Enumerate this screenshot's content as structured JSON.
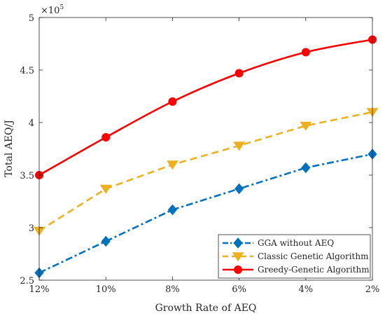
{
  "chart_data": {
    "type": "line",
    "title": "",
    "xlabel": "Growth Rate of AEQ",
    "ylabel": "Total AEQ/J",
    "y_multiplier_label": "×10",
    "y_multiplier_exponent": "5",
    "categories": [
      "12%",
      "10%",
      "8%",
      "6%",
      "4%",
      "2%"
    ],
    "ylim": [
      2.5,
      5
    ],
    "yticks": [
      2.5,
      3,
      3.5,
      4,
      4.5,
      5
    ],
    "ytick_labels": [
      "2.5",
      "3",
      "3.5",
      "4",
      "4.5",
      "5"
    ],
    "grid": false,
    "legend_position": "bottom-right",
    "series": [
      {
        "name": "GGA without AEQ",
        "values": [
          2.57,
          2.87,
          3.17,
          3.37,
          3.57,
          3.7
        ],
        "color": "#0072BD",
        "line_style": "dash-dot",
        "marker": "diamond"
      },
      {
        "name": "Classic Genetic Algorithm",
        "values": [
          2.97,
          3.37,
          3.6,
          3.78,
          3.97,
          4.1
        ],
        "color": "#EDB120",
        "line_style": "dashed",
        "marker": "triangle-down"
      },
      {
        "name": "Greedy-Genetic Algorithm",
        "values": [
          3.5,
          3.86,
          4.2,
          4.47,
          4.67,
          4.79
        ],
        "color": "#FF0000",
        "line_style": "solid",
        "marker": "circle"
      }
    ]
  }
}
